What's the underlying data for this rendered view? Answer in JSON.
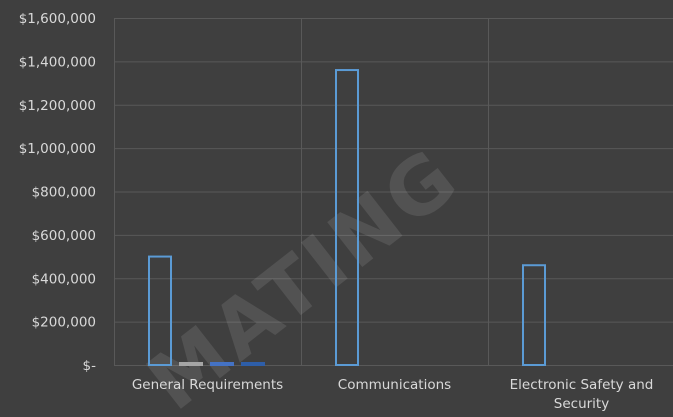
{
  "chart_data": {
    "type": "bar",
    "categories": [
      "General Requirements",
      "Communications",
      "Electronic Safety and Security"
    ],
    "series": [
      {
        "values": [
          500000,
          1360000,
          460000
        ],
        "color": "#5b9bd5"
      },
      {
        "values": [
          3000,
          0,
          0
        ],
        "color": "#a5a5a5"
      },
      {
        "values": [
          2000,
          0,
          0
        ],
        "color": "#4472c4"
      },
      {
        "values": [
          1000,
          0,
          0
        ],
        "color": "#2e5ea8"
      }
    ],
    "yticks": [
      "$-",
      "$200,000",
      "$400,000",
      "$600,000",
      "$800,000",
      "$1,000,000",
      "$1,200,000",
      "$1,400,000",
      "$1,600,000"
    ],
    "ylim": [
      0,
      1600000
    ],
    "grid": true,
    "watermark": "MATING",
    "colors": {
      "background": "#3f3f3f",
      "gridline": "#595959",
      "text": "#d9d9d9",
      "watermark": "#ffffff"
    }
  }
}
